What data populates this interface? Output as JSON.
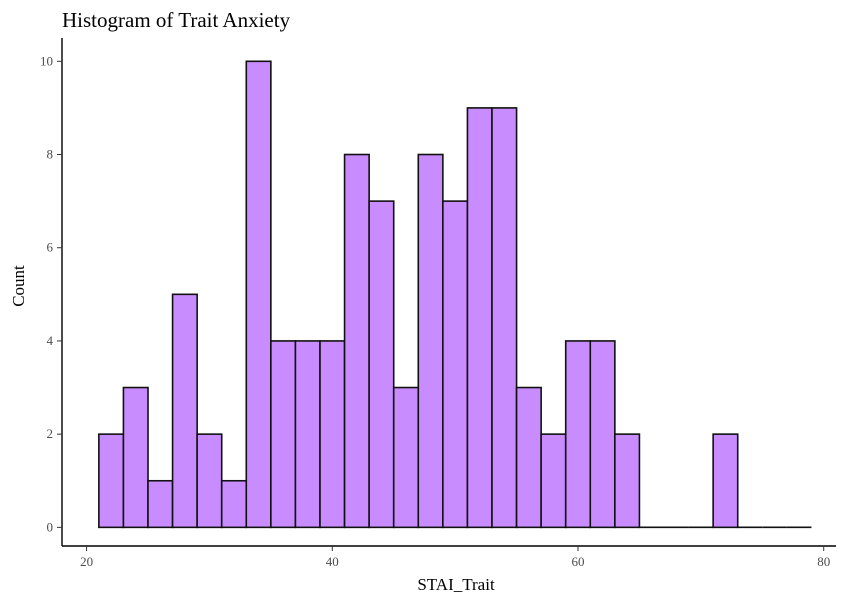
{
  "chart_data": {
    "type": "histogram",
    "title": "Histogram of Trait Anxiety",
    "xlabel": "STAI_Trait",
    "ylabel": "Count",
    "bin_width": 2,
    "bins_start": [
      21,
      23,
      25,
      27,
      29,
      31,
      33,
      35,
      37,
      39,
      41,
      43,
      45,
      47,
      49,
      51,
      53,
      55,
      57,
      59,
      61,
      63,
      65,
      67,
      69,
      71,
      73,
      75,
      77
    ],
    "counts": [
      2,
      3,
      1,
      5,
      2,
      1,
      10,
      4,
      4,
      4,
      8,
      7,
      3,
      8,
      7,
      9,
      9,
      3,
      2,
      4,
      4,
      2,
      0,
      0,
      0,
      2,
      0,
      0,
      0
    ],
    "xlim": [
      18,
      81
    ],
    "ylim": [
      -0.4,
      10.5
    ],
    "x_ticks": [
      20,
      40,
      60,
      80
    ],
    "x_tick_labels": [
      "20",
      "40",
      "60",
      "80"
    ],
    "y_ticks": [
      0,
      2,
      4,
      6,
      8,
      10
    ],
    "y_tick_labels": [
      "0",
      "2",
      "4",
      "6",
      "8",
      "10"
    ],
    "grid": false,
    "legend": "none",
    "colors": {
      "fill": "#c88cff",
      "stroke": "#111111",
      "axis": "#000000"
    }
  }
}
